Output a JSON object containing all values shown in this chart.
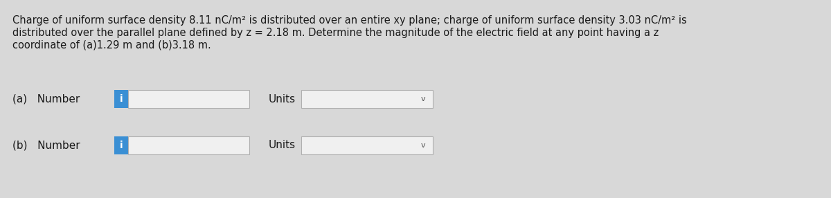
{
  "background_color": "#d8d8d8",
  "text_color": "#1a1a1a",
  "title_lines": [
    "Charge of uniform surface density 8.11 nC/m² is distributed over an entire xy plane; charge of uniform surface density 3.03 nC/m² is",
    "distributed over the parallel plane defined by z = 2.18 m. Determine the magnitude of the electric field at any point having a z",
    "coordinate of (a)1.29 m and (b)3.18 m."
  ],
  "part_a_label": "(a)   Number",
  "part_b_label": "(b)   Number",
  "units_label": "Units",
  "info_button_color": "#3a8fd4",
  "info_button_text": "i",
  "input_box_color": "#f0f0f0",
  "input_box_border": "#b0b0b0",
  "dropdown_box_color": "#f0f0f0",
  "dropdown_box_border": "#b0b0b0",
  "chevron": "v",
  "font_size_text": 10.5,
  "font_size_label": 11,
  "font_size_info": 10
}
